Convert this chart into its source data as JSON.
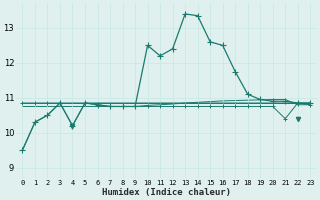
{
  "xlabel": "Humidex (Indice chaleur)",
  "x": [
    0,
    1,
    2,
    3,
    4,
    5,
    6,
    7,
    8,
    9,
    10,
    11,
    12,
    13,
    14,
    15,
    16,
    17,
    18,
    19,
    20,
    21,
    22,
    23
  ],
  "y_main": [
    9.5,
    10.3,
    10.5,
    10.85,
    10.2,
    10.85,
    10.8,
    10.75,
    10.75,
    10.75,
    12.5,
    12.2,
    12.4,
    13.4,
    13.35,
    12.6,
    12.5,
    11.75,
    11.1,
    10.95,
    10.9,
    10.9,
    10.85,
    10.85
  ],
  "y_trend": [
    9.5,
    10.3,
    10.5,
    10.85,
    10.85,
    10.85,
    10.85,
    10.85,
    10.85,
    10.85,
    10.85,
    10.85,
    10.85,
    10.85,
    10.85,
    10.85,
    10.85,
    10.85,
    10.85,
    10.85,
    10.85,
    10.85,
    10.85,
    10.85
  ],
  "y_flat1": [
    10.85,
    10.85,
    10.85,
    10.85,
    10.85,
    10.85,
    10.85,
    10.85,
    10.85,
    10.85,
    10.85,
    10.85,
    10.85,
    10.85,
    10.85,
    10.85,
    10.85,
    10.85,
    10.85,
    10.85,
    10.85,
    10.85,
    10.85,
    10.85
  ],
  "y_flat2": [
    10.75,
    10.75,
    10.75,
    10.75,
    10.75,
    10.75,
    10.75,
    10.75,
    10.75,
    10.75,
    10.78,
    10.8,
    10.82,
    10.85,
    10.87,
    10.89,
    10.91,
    10.92,
    10.93,
    10.94,
    10.95,
    10.95,
    10.8,
    10.8
  ],
  "y_zigzag": [
    10.85,
    10.85,
    10.85,
    10.85,
    10.2,
    10.85,
    10.8,
    10.75,
    10.75,
    10.75,
    10.75,
    10.75,
    10.75,
    10.75,
    10.75,
    10.75,
    10.75,
    10.75,
    10.75,
    10.75,
    10.75,
    10.4,
    10.85,
    10.8
  ],
  "ylim": [
    8.7,
    13.7
  ],
  "yticks": [
    9,
    10,
    11,
    12,
    13
  ],
  "line_color": "#1a7a6e",
  "bg_color": "#dff0ef",
  "grid_color_major": "#c8e8e5",
  "grid_color_minor": "#daeae8",
  "text_color": "#2a2a2a",
  "linewidth": 0.9,
  "lw_thin": 0.7
}
